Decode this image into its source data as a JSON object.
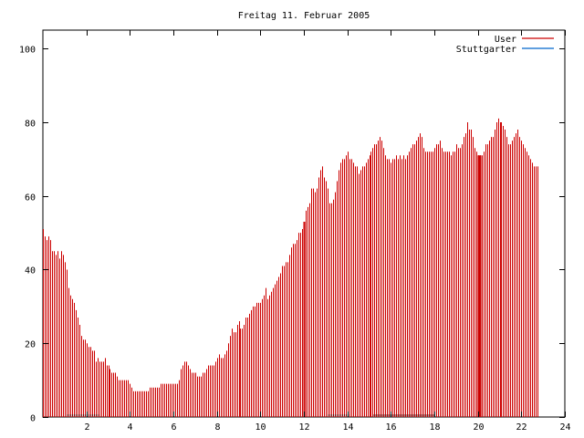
{
  "chart_data": {
    "type": "bar",
    "title": "Freitag 11. Februar 2005",
    "xlabel": "",
    "ylabel": "",
    "xlim": [
      0,
      24
    ],
    "ylim": [
      0,
      105
    ],
    "x_ticks": [
      2,
      4,
      6,
      8,
      10,
      12,
      14,
      16,
      18,
      20,
      22,
      24
    ],
    "y_ticks": [
      0,
      20,
      40,
      60,
      80,
      100
    ],
    "grid": false,
    "legend_position": "top-right",
    "bin_minutes": 5,
    "series": [
      {
        "name": "User",
        "color": "#cc0000",
        "values": [
          51,
          49,
          48,
          49,
          48,
          45,
          45,
          44,
          45,
          43,
          45,
          44,
          42,
          40,
          35,
          33,
          32,
          31,
          29,
          27,
          25,
          22,
          21,
          21,
          20,
          19,
          19,
          18,
          18,
          15,
          16,
          15,
          15,
          15,
          16,
          14,
          14,
          13,
          12,
          12,
          12,
          11,
          10,
          10,
          10,
          10,
          10,
          10,
          9,
          8,
          7,
          7,
          7,
          7,
          7,
          7,
          7,
          7,
          7,
          8,
          8,
          8,
          8,
          8,
          8,
          9,
          9,
          9,
          9,
          9,
          9,
          9,
          9,
          9,
          9,
          10,
          13,
          14,
          15,
          15,
          14,
          13,
          12,
          12,
          12,
          11,
          11,
          11,
          12,
          12,
          13,
          14,
          14,
          14,
          14,
          15,
          16,
          17,
          16,
          16,
          17,
          18,
          20,
          22,
          24,
          23,
          23,
          25,
          26,
          24,
          24,
          25,
          27,
          27,
          28,
          29,
          30,
          30,
          31,
          31,
          31,
          32,
          33,
          35,
          32,
          33,
          34,
          35,
          36,
          37,
          38,
          39,
          41,
          41,
          42,
          42,
          44,
          46,
          47,
          47,
          48,
          50,
          50,
          51,
          53,
          56,
          57,
          58,
          62,
          62,
          61,
          62,
          65,
          67,
          68,
          65,
          64,
          62,
          58,
          58,
          59,
          61,
          64,
          67,
          69,
          70,
          70,
          71,
          72,
          70,
          70,
          69,
          68,
          68,
          66,
          67,
          68,
          68,
          69,
          70,
          71,
          72,
          73,
          74,
          74,
          75,
          76,
          75,
          73,
          71,
          70,
          70,
          69,
          70,
          70,
          71,
          70,
          71,
          70,
          71,
          70,
          71,
          72,
          73,
          74,
          74,
          75,
          76,
          77,
          76,
          73,
          72,
          72,
          72,
          72,
          72,
          73,
          74,
          74,
          75,
          73,
          72,
          72,
          72,
          72,
          71,
          72,
          72,
          74,
          73,
          73,
          74,
          76,
          77,
          80,
          78,
          78,
          76,
          73,
          72,
          71,
          71,
          71,
          72,
          74,
          74,
          75,
          76,
          76,
          78,
          80,
          81,
          80,
          80,
          79,
          78,
          76,
          74,
          74,
          75,
          76,
          77,
          78,
          76,
          75,
          74,
          73,
          72,
          71,
          70,
          69,
          68,
          68,
          68
        ],
        "highlight_x": [
          12,
          20,
          20.083
        ]
      },
      {
        "name": "Stuttgarter",
        "color": "#0066cc",
        "values": []
      }
    ],
    "baseline_segments": [
      {
        "from": 1.1,
        "to": 2.6
      },
      {
        "from": 13.1,
        "to": 14.1
      },
      {
        "from": 15.2,
        "to": 18.0
      }
    ]
  }
}
